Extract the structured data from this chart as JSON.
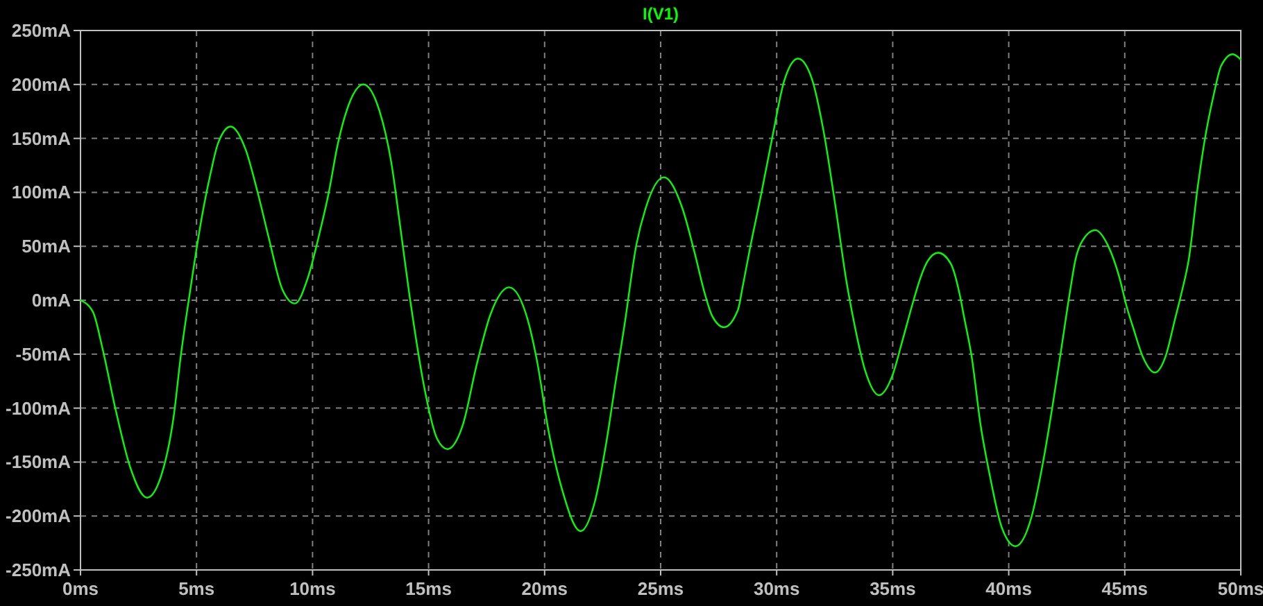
{
  "chart_data": {
    "type": "line",
    "x": [
      0,
      0.54,
      0.93,
      1.53,
      2.13,
      2.87,
      3.53,
      4.02,
      4.32,
      4.72,
      5.22,
      5.62,
      5.92,
      6.47,
      7.11,
      7.61,
      8.1,
      8.7,
      9.24,
      9.8,
      10.3,
      10.7,
      11.09,
      11.49,
      12.19,
      12.89,
      13.39,
      13.78,
      14.18,
      14.36,
      14.78,
      15.38,
      15.82,
      16.47,
      17.07,
      17.67,
      18.47,
      19.27,
      19.67,
      20.16,
      20.76,
      21.55,
      22.15,
      22.65,
      23.05,
      23.45,
      23.95,
      24.35,
      25.14,
      25.94,
      26.44,
      26.93,
      27.23,
      27.73,
      28.33,
      28.53,
      28.83,
      29.33,
      29.83,
      30.32,
      30.92,
      31.52,
      32.01,
      32.52,
      33.01,
      33.31,
      33.81,
      34.41,
      35.0,
      35.4,
      35.9,
      36.2,
      36.5,
      36.96,
      37.5,
      37.9,
      38.07,
      38.4,
      38.79,
      39.19,
      39.69,
      40.29,
      40.98,
      41.48,
      41.88,
      42.28,
      42.64,
      42.88,
      43.17,
      43.73,
      44.27,
      44.77,
      45.07,
      45.37,
      45.77,
      46.3,
      46.76,
      47.16,
      47.46,
      47.76,
      48.15,
      48.45,
      48.85,
      49.15,
      49.65,
      50
    ],
    "series": [
      {
        "name": "I(V1)",
        "color": "#00ff00",
        "values": [
          0,
          -11,
          -43,
          -103,
          -154,
          -183,
          -159,
          -107,
          -52,
          8,
          76,
          119,
          145,
          161,
          140,
          102,
          59,
          10,
          -3,
          21,
          62,
          100,
          145,
          177,
          200,
          175,
          128,
          68,
          4,
          -22,
          -77,
          -129,
          -138,
          -116,
          -60,
          -13,
          12,
          -18,
          -56,
          -120,
          -176,
          -214,
          -188,
          -133,
          -77,
          -22,
          51,
          85,
          114,
          85,
          46,
          4,
          -15,
          -25,
          -9,
          12,
          46,
          98,
          153,
          203,
          224,
          205,
          158,
          89,
          17,
          -18,
          -65,
          -88,
          -69,
          -39,
          0,
          21,
          36,
          44,
          34,
          4,
          -15,
          -52,
          -116,
          -163,
          -210,
          -228,
          -201,
          -150,
          -99,
          -43,
          8,
          38,
          55,
          65,
          51,
          21,
          -5,
          -26,
          -52,
          -67,
          -52,
          -18,
          8,
          38,
          106,
          149,
          192,
          217,
          228,
          223
        ]
      }
    ],
    "xlim": [
      0,
      50
    ],
    "xticks": [
      {
        "value": 0,
        "label": "0ms"
      },
      {
        "value": 5,
        "label": "5ms"
      },
      {
        "value": 10,
        "label": "10ms"
      },
      {
        "value": 15,
        "label": "15ms"
      },
      {
        "value": 20,
        "label": "20ms"
      },
      {
        "value": 25,
        "label": "25ms"
      },
      {
        "value": 30,
        "label": "30ms"
      },
      {
        "value": 35,
        "label": "35ms"
      },
      {
        "value": 40,
        "label": "40ms"
      },
      {
        "value": 45,
        "label": "45ms"
      },
      {
        "value": 50,
        "label": "50ms"
      }
    ],
    "ylim": [
      -250,
      250
    ],
    "yticks": [
      {
        "value": -250,
        "label": "-250mA"
      },
      {
        "value": -200,
        "label": "-200mA"
      },
      {
        "value": -150,
        "label": "-150mA"
      },
      {
        "value": -100,
        "label": "-100mA"
      },
      {
        "value": -50,
        "label": "-50mA"
      },
      {
        "value": 0,
        "label": "0mA"
      },
      {
        "value": 50,
        "label": "50mA"
      },
      {
        "value": 100,
        "label": "100mA"
      },
      {
        "value": 150,
        "label": "150mA"
      },
      {
        "value": 200,
        "label": "200mA"
      },
      {
        "value": 250,
        "label": "250mA"
      }
    ],
    "grid": true,
    "legend": "top",
    "marker": "none",
    "line_style": "solid"
  }
}
